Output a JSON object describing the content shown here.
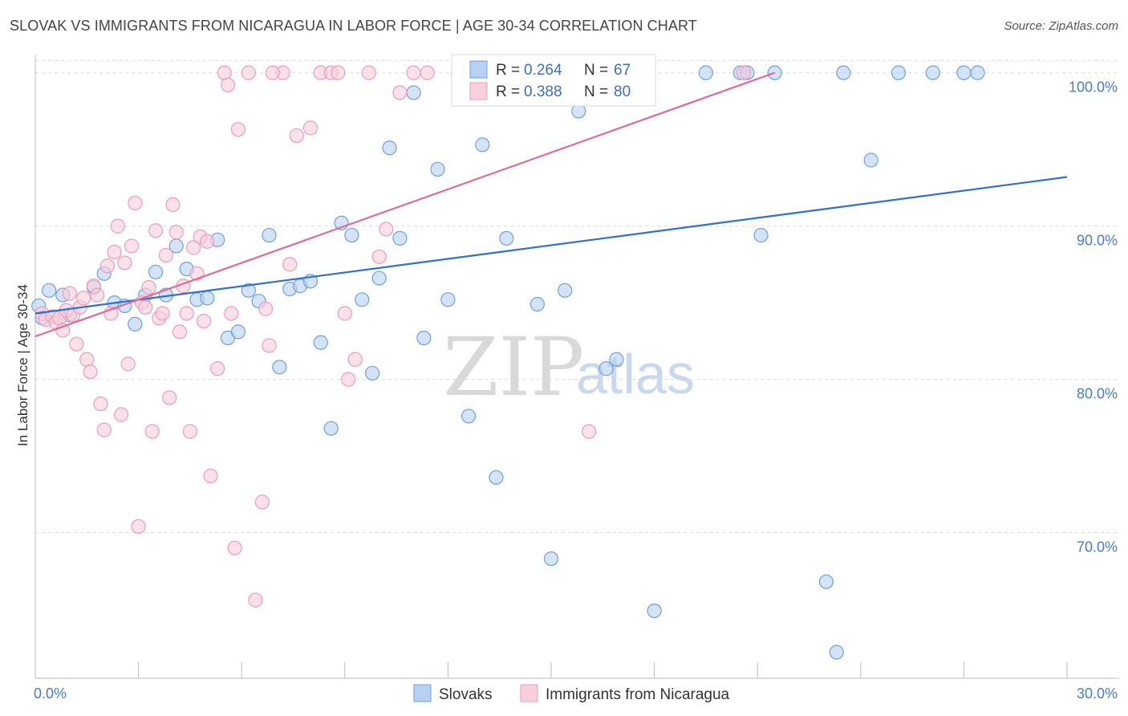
{
  "chart_data": {
    "type": "scatter",
    "title": "SLOVAK VS IMMIGRANTS FROM NICARAGUA IN LABOR FORCE | AGE 30-34 CORRELATION CHART",
    "source": "Source: ZipAtlas.com",
    "ylabel": "In Labor Force | Age 30-34",
    "xlim": [
      0,
      30
    ],
    "ylim": [
      60.5,
      101.5
    ],
    "x_tick_labels": [
      "0.0%",
      "30.0%"
    ],
    "y_ticks": [
      70,
      80,
      90,
      100
    ],
    "y_tick_labels": [
      "70.0%",
      "80.0%",
      "90.0%",
      "100.0%"
    ],
    "grid": true,
    "watermark": {
      "zip": "ZIP",
      "atlas": "atlas"
    },
    "legend": {
      "entries": [
        {
          "r_label": "R =",
          "r_value": "0.264",
          "n_label": "N =",
          "n_value": "67"
        },
        {
          "r_label": "R =",
          "r_value": "0.388",
          "n_label": "N =",
          "n_value": "80"
        }
      ]
    },
    "series": [
      {
        "name": "Slovaks",
        "color": "#6f9fe0",
        "fill": "#b8d1f3",
        "trend": {
          "x0": 0,
          "y0": 84.3,
          "x1": 30,
          "y1": 93.2,
          "color": "#2f6fd0"
        },
        "points": [
          [
            0.1,
            84.8
          ],
          [
            0.4,
            85.8
          ],
          [
            0.8,
            85.5
          ],
          [
            1.7,
            86.0
          ],
          [
            2.0,
            86.9
          ],
          [
            2.3,
            85.0
          ],
          [
            2.6,
            84.8
          ],
          [
            2.9,
            83.6
          ],
          [
            3.2,
            85.5
          ],
          [
            3.5,
            87.0
          ],
          [
            3.8,
            85.5
          ],
          [
            4.1,
            88.7
          ],
          [
            4.4,
            87.2
          ],
          [
            4.7,
            85.2
          ],
          [
            5.0,
            85.3
          ],
          [
            5.3,
            89.1
          ],
          [
            5.6,
            82.7
          ],
          [
            5.9,
            83.1
          ],
          [
            6.2,
            85.8
          ],
          [
            6.5,
            85.1
          ],
          [
            6.8,
            89.4
          ],
          [
            7.1,
            80.8
          ],
          [
            7.4,
            85.9
          ],
          [
            7.7,
            86.1
          ],
          [
            8.0,
            86.4
          ],
          [
            8.3,
            82.4
          ],
          [
            8.6,
            76.8
          ],
          [
            8.9,
            90.2
          ],
          [
            9.2,
            89.4
          ],
          [
            9.5,
            85.2
          ],
          [
            9.8,
            80.4
          ],
          [
            10.0,
            86.6
          ],
          [
            10.3,
            95.1
          ],
          [
            10.6,
            89.2
          ],
          [
            11.0,
            98.7
          ],
          [
            11.3,
            82.7
          ],
          [
            11.7,
            93.7
          ],
          [
            12.0,
            85.2
          ],
          [
            12.3,
            100.0
          ],
          [
            12.6,
            77.6
          ],
          [
            13.0,
            95.3
          ],
          [
            13.4,
            73.6
          ],
          [
            13.7,
            89.2
          ],
          [
            14.2,
            100.0
          ],
          [
            14.6,
            84.9
          ],
          [
            15.0,
            68.3
          ],
          [
            15.4,
            85.8
          ],
          [
            15.8,
            97.5
          ],
          [
            16.1,
            100.0
          ],
          [
            16.6,
            80.7
          ],
          [
            16.9,
            81.3
          ],
          [
            18.0,
            64.9
          ],
          [
            19.5,
            100.0
          ],
          [
            20.5,
            100.0
          ],
          [
            20.7,
            100.0
          ],
          [
            21.1,
            89.4
          ],
          [
            21.5,
            100.0
          ],
          [
            23.0,
            66.8
          ],
          [
            23.3,
            62.2
          ],
          [
            23.5,
            100.0
          ],
          [
            24.3,
            94.3
          ],
          [
            25.1,
            100.0
          ],
          [
            26.1,
            100.0
          ],
          [
            27.0,
            100.0
          ],
          [
            27.4,
            100.0
          ],
          [
            1.0,
            84.2
          ],
          [
            0.2,
            84.0
          ]
        ]
      },
      {
        "name": "Immigrants from Nicaragua",
        "color": "#ee9bb5",
        "fill": "#f8cfdc",
        "trend": {
          "x0": 0,
          "y0": 82.8,
          "x1": 21.5,
          "y1": 100.0,
          "color": "#e06a93"
        },
        "points": [
          [
            0.2,
            84.3
          ],
          [
            0.3,
            83.9
          ],
          [
            0.5,
            84.1
          ],
          [
            0.6,
            83.7
          ],
          [
            0.7,
            84.0
          ],
          [
            0.8,
            83.2
          ],
          [
            0.9,
            84.5
          ],
          [
            1.0,
            85.6
          ],
          [
            1.1,
            84.2
          ],
          [
            1.2,
            82.3
          ],
          [
            1.3,
            84.7
          ],
          [
            1.4,
            85.3
          ],
          [
            1.5,
            81.3
          ],
          [
            1.6,
            80.5
          ],
          [
            1.7,
            86.1
          ],
          [
            1.8,
            85.5
          ],
          [
            1.9,
            78.4
          ],
          [
            2.0,
            76.7
          ],
          [
            2.1,
            87.4
          ],
          [
            2.2,
            84.3
          ],
          [
            2.3,
            88.3
          ],
          [
            2.4,
            90.0
          ],
          [
            2.5,
            77.7
          ],
          [
            2.6,
            87.6
          ],
          [
            2.7,
            81.0
          ],
          [
            2.8,
            88.7
          ],
          [
            2.9,
            91.5
          ],
          [
            3.0,
            70.4
          ],
          [
            3.1,
            85.0
          ],
          [
            3.2,
            84.7
          ],
          [
            3.3,
            86.0
          ],
          [
            3.4,
            76.6
          ],
          [
            3.5,
            89.7
          ],
          [
            3.6,
            84.0
          ],
          [
            3.7,
            84.3
          ],
          [
            3.8,
            88.1
          ],
          [
            3.9,
            78.8
          ],
          [
            4.0,
            91.4
          ],
          [
            4.1,
            89.6
          ],
          [
            4.2,
            83.1
          ],
          [
            4.3,
            86.1
          ],
          [
            4.4,
            84.3
          ],
          [
            4.5,
            76.6
          ],
          [
            4.6,
            88.6
          ],
          [
            4.7,
            86.9
          ],
          [
            4.8,
            89.3
          ],
          [
            4.9,
            83.8
          ],
          [
            5.0,
            89.0
          ],
          [
            5.1,
            73.7
          ],
          [
            5.3,
            80.7
          ],
          [
            5.5,
            100.0
          ],
          [
            5.6,
            99.2
          ],
          [
            5.7,
            84.3
          ],
          [
            5.8,
            69.0
          ],
          [
            5.9,
            96.3
          ],
          [
            6.2,
            100.0
          ],
          [
            6.4,
            65.6
          ],
          [
            6.6,
            72.0
          ],
          [
            6.7,
            84.6
          ],
          [
            6.8,
            82.2
          ],
          [
            7.2,
            100.0
          ],
          [
            7.4,
            87.5
          ],
          [
            7.6,
            95.9
          ],
          [
            8.0,
            96.4
          ],
          [
            8.3,
            100.0
          ],
          [
            8.6,
            100.0
          ],
          [
            9.0,
            84.3
          ],
          [
            9.1,
            80.0
          ],
          [
            9.3,
            81.3
          ],
          [
            9.7,
            100.0
          ],
          [
            10.0,
            88.0
          ],
          [
            10.2,
            89.8
          ],
          [
            10.6,
            98.7
          ],
          [
            11.0,
            100.0
          ],
          [
            11.4,
            100.0
          ],
          [
            16.1,
            76.6
          ],
          [
            16.7,
            100.0
          ],
          [
            20.6,
            100.0
          ],
          [
            8.8,
            100.0
          ],
          [
            6.9,
            100.0
          ]
        ]
      }
    ]
  },
  "bottom_legend": {
    "items": [
      {
        "label": "Slovaks",
        "color": "#b8d1f3",
        "border": "#6f9fe0"
      },
      {
        "label": "Immigrants from Nicaragua",
        "color": "#f8cfdc",
        "border": "#ee9bb5"
      }
    ]
  }
}
